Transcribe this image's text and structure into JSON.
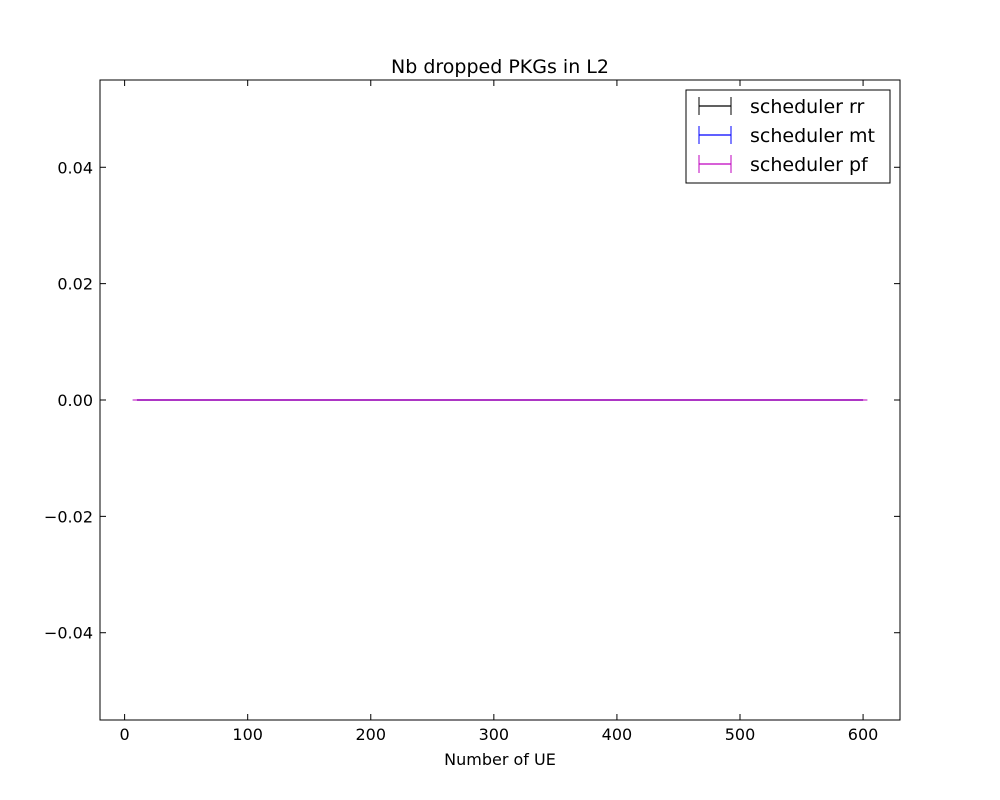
{
  "chart_data": {
    "type": "line",
    "title": "Nb dropped PKGs in L2",
    "xlabel": "Number of UE",
    "ylabel": "",
    "xlim": [
      -20,
      630
    ],
    "ylim": [
      -0.055,
      0.055
    ],
    "x_ticks": [
      0,
      100,
      200,
      300,
      400,
      500,
      600
    ],
    "y_ticks": [
      -0.04,
      -0.02,
      0.0,
      0.02,
      0.04
    ],
    "x_tick_labels": [
      "0",
      "100",
      "200",
      "300",
      "400",
      "500",
      "600"
    ],
    "y_tick_labels": [
      "−0.04",
      "−0.02",
      "0.00",
      "0.02",
      "0.04"
    ],
    "grid": false,
    "legend_position": "top-right",
    "series": [
      {
        "name": "scheduler rr",
        "color": "#000000",
        "x": [
          10,
          50,
          100,
          150,
          200,
          250,
          300,
          350,
          400,
          450,
          500,
          550,
          600
        ],
        "y": [
          0,
          0,
          0,
          0,
          0,
          0,
          0,
          0,
          0,
          0,
          0,
          0,
          0
        ],
        "yerr": [
          0,
          0,
          0,
          0,
          0,
          0,
          0,
          0,
          0,
          0,
          0,
          0,
          0
        ]
      },
      {
        "name": "scheduler mt",
        "color": "#0000ff",
        "x": [
          10,
          50,
          100,
          150,
          200,
          250,
          300,
          350,
          400,
          450,
          500,
          550,
          600
        ],
        "y": [
          0,
          0,
          0,
          0,
          0,
          0,
          0,
          0,
          0,
          0,
          0,
          0,
          0
        ],
        "yerr": [
          0,
          0,
          0,
          0,
          0,
          0,
          0,
          0,
          0,
          0,
          0,
          0,
          0
        ]
      },
      {
        "name": "scheduler pf",
        "color": "#bf00bf",
        "x": [
          10,
          50,
          100,
          150,
          200,
          250,
          300,
          350,
          400,
          450,
          500,
          550,
          600
        ],
        "y": [
          0,
          0,
          0,
          0,
          0,
          0,
          0,
          0,
          0,
          0,
          0,
          0,
          0
        ],
        "yerr": [
          0,
          0,
          0,
          0,
          0,
          0,
          0,
          0,
          0,
          0,
          0,
          0,
          0
        ]
      }
    ]
  }
}
